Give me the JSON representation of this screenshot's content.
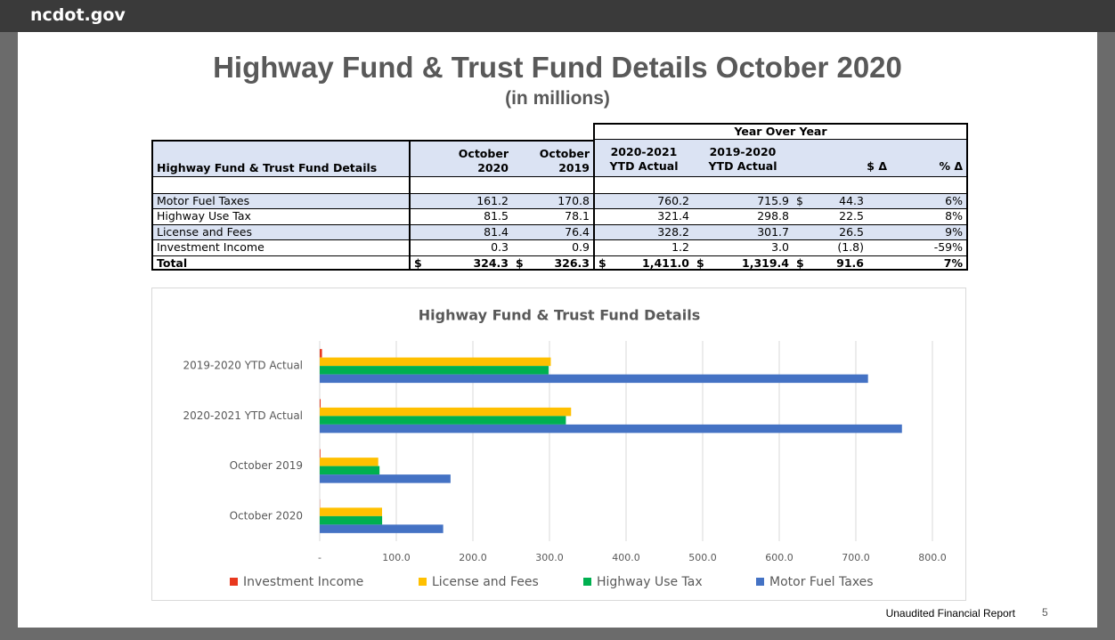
{
  "header": {
    "brand": "ncdot.gov"
  },
  "title": "Highway Fund & Trust Fund Details October 2020",
  "subtitle": "(in millions)",
  "table": {
    "group_header": "Year Over Year",
    "columns": [
      {
        "lines": [
          "Highway Fund & Trust Fund Details"
        ]
      },
      {
        "lines": [
          "October",
          "2020"
        ]
      },
      {
        "lines": [
          "October",
          "2019"
        ]
      },
      {
        "lines": [
          "2020-2021",
          "YTD Actual"
        ]
      },
      {
        "lines": [
          "2019-2020",
          "YTD Actual"
        ]
      },
      {
        "lines": [
          "$ Δ"
        ]
      },
      {
        "lines": [
          "% Δ"
        ]
      }
    ],
    "rows": [
      {
        "label": "Motor Fuel Taxes",
        "cells": [
          "161.2",
          "170.8",
          "760.2",
          "715.9",
          {
            "currency": "$",
            "value": "44.3"
          },
          "6%"
        ]
      },
      {
        "label": "Highway Use Tax",
        "cells": [
          "81.5",
          "78.1",
          "321.4",
          "298.8",
          "22.5",
          "8%"
        ]
      },
      {
        "label": "License and Fees",
        "cells": [
          "81.4",
          "76.4",
          "328.2",
          "301.7",
          "26.5",
          "9%"
        ]
      },
      {
        "label": "Investment Income",
        "cells": [
          "0.3",
          "0.9",
          "1.2",
          "3.0",
          "(1.8)",
          "-59%"
        ]
      },
      {
        "label": "Total",
        "cells": [
          {
            "currency": "$",
            "value": "324.3"
          },
          {
            "currency": "$",
            "value": "326.3"
          },
          {
            "currency": "$",
            "value": "1,411.0"
          },
          {
            "currency": "$",
            "value": "1,319.4"
          },
          {
            "currency": "$",
            "value": "91.6"
          },
          "7%"
        ]
      }
    ]
  },
  "chart_data": {
    "type": "bar",
    "orientation": "horizontal",
    "title": "Highway Fund & Trust Fund Details",
    "categories": [
      "October 2020",
      "October 2019",
      "2020-2021 YTD Actual",
      "2019-2020 YTD Actual"
    ],
    "series": [
      {
        "name": "Investment Income",
        "color": "#e8381e",
        "values": [
          0.3,
          0.9,
          1.2,
          3.0
        ]
      },
      {
        "name": "License and Fees",
        "color": "#ffc000",
        "values": [
          81.4,
          76.4,
          328.2,
          301.7
        ]
      },
      {
        "name": "Highway Use Tax",
        "color": "#00b050",
        "values": [
          81.5,
          78.1,
          321.4,
          298.8
        ]
      },
      {
        "name": "Motor Fuel Taxes",
        "color": "#4472c4",
        "values": [
          161.2,
          170.8,
          760.2,
          715.9
        ]
      }
    ],
    "xlim": [
      0,
      800
    ],
    "xticks": [
      {
        "value": 0,
        "label": "-"
      },
      {
        "value": 100,
        "label": "100.0"
      },
      {
        "value": 200,
        "label": "200.0"
      },
      {
        "value": 300,
        "label": "300.0"
      },
      {
        "value": 400,
        "label": "400.0"
      },
      {
        "value": 500,
        "label": "500.0"
      },
      {
        "value": 600,
        "label": "600.0"
      },
      {
        "value": 700,
        "label": "700.0"
      },
      {
        "value": 800,
        "label": "800.0"
      }
    ],
    "grid": true,
    "legend": "bottom"
  },
  "footer": {
    "note": "Unaudited Financial Report",
    "page": "5"
  }
}
